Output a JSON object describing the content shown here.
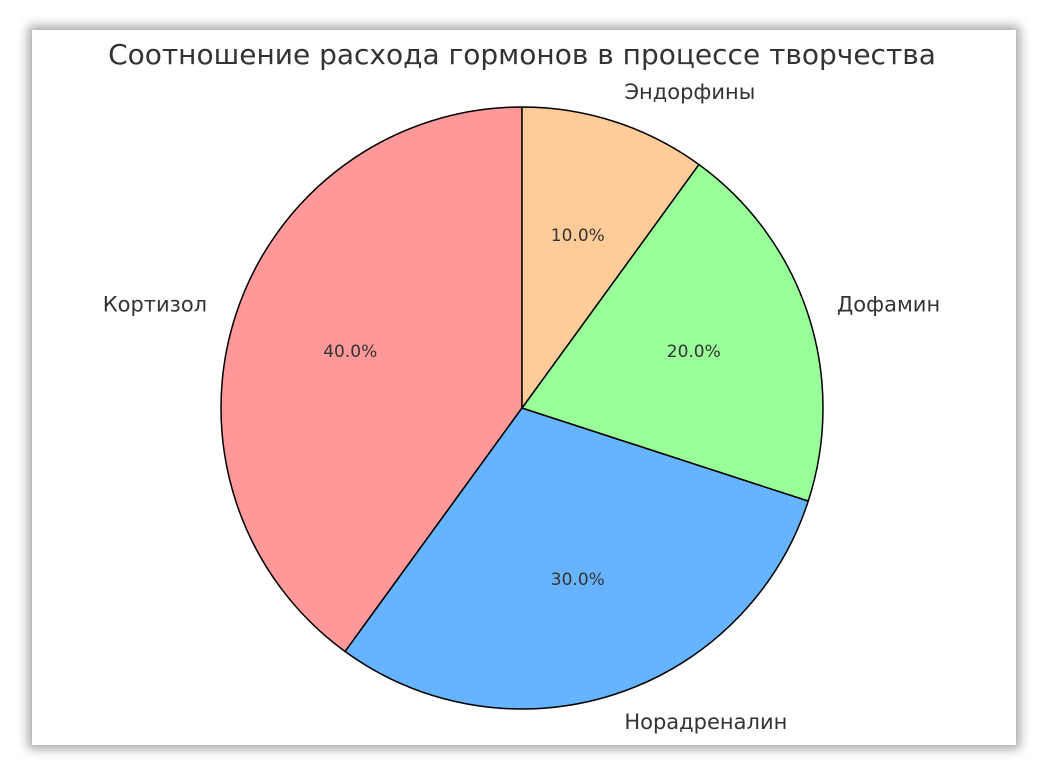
{
  "chart_data": {
    "type": "pie",
    "title": "Соотношение расхода гормонов в процессе творчества",
    "categories": [
      "Кортизол",
      "Норадреналин",
      "Дофамин",
      "Эндорфины"
    ],
    "values": [
      40,
      30,
      20,
      10
    ],
    "value_labels": [
      "40.0%",
      "30.0%",
      "20.0%",
      "10.0%"
    ],
    "colors": [
      "#ff9999",
      "#66b3ff",
      "#99ff99",
      "#ffcc99"
    ]
  }
}
